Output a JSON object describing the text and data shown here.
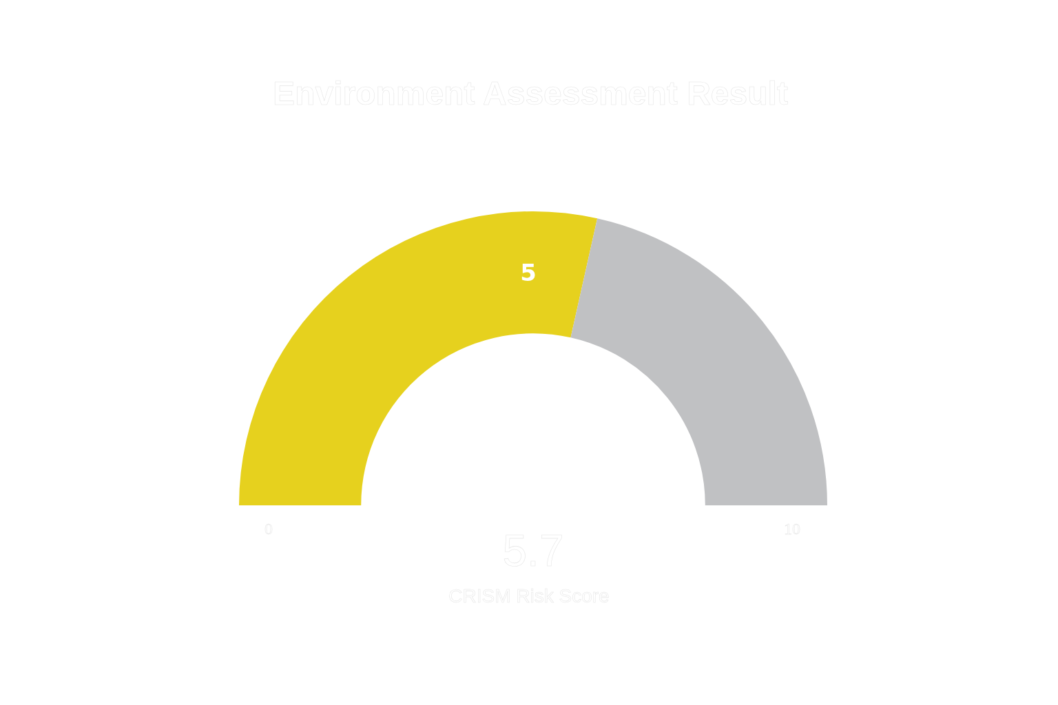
{
  "chart_data": {
    "type": "donut",
    "title": "Environment Assessment Result",
    "categories": [
      null,
      null
    ],
    "values": [
      57,
      43
    ],
    "colors": [
      "#e6d11e",
      "#c0c1c3"
    ],
    "legend": false,
    "annotations": [
      "5",
      "0",
      "10",
      "5.7",
      "CRISM Risk Score"
    ]
  }
}
